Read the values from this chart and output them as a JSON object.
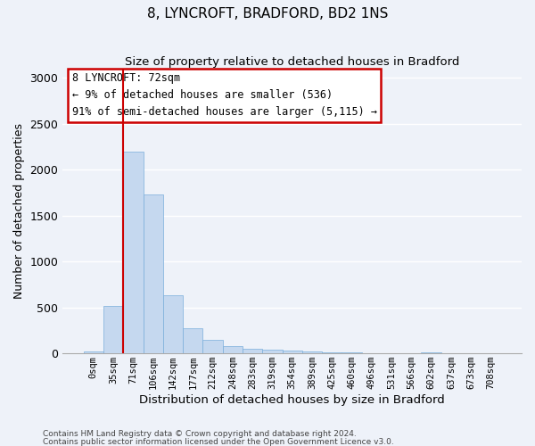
{
  "title": "8, LYNCROFT, BRADFORD, BD2 1NS",
  "subtitle": "Size of property relative to detached houses in Bradford",
  "xlabel": "Distribution of detached houses by size in Bradford",
  "ylabel": "Number of detached properties",
  "bar_color": "#c5d8ef",
  "bar_edge_color": "#7aaedb",
  "background_color": "#eef2f9",
  "grid_color": "#ffffff",
  "categories": [
    "0sqm",
    "35sqm",
    "71sqm",
    "106sqm",
    "142sqm",
    "177sqm",
    "212sqm",
    "248sqm",
    "283sqm",
    "319sqm",
    "354sqm",
    "389sqm",
    "425sqm",
    "460sqm",
    "496sqm",
    "531sqm",
    "566sqm",
    "602sqm",
    "637sqm",
    "673sqm",
    "708sqm"
  ],
  "values": [
    25,
    520,
    2195,
    1730,
    630,
    275,
    145,
    80,
    50,
    42,
    28,
    18,
    10,
    8,
    5,
    3,
    2,
    14,
    2,
    1,
    0
  ],
  "ylim": [
    0,
    3100
  ],
  "yticks": [
    0,
    500,
    1000,
    1500,
    2000,
    2500,
    3000
  ],
  "annotation_text": "8 LYNCROFT: 72sqm\n← 9% of detached houses are smaller (536)\n91% of semi-detached houses are larger (5,115) →",
  "annotation_box_facecolor": "#ffffff",
  "annotation_box_edgecolor": "#cc0000",
  "vline_color": "#cc0000",
  "vline_x_idx": 1.5,
  "footer1": "Contains HM Land Registry data © Crown copyright and database right 2024.",
  "footer2": "Contains public sector information licensed under the Open Government Licence v3.0."
}
